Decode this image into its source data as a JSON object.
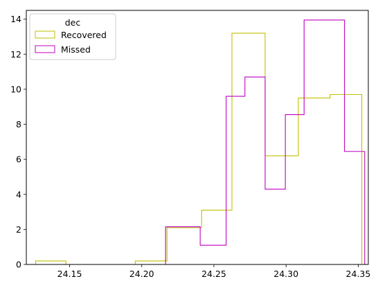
{
  "chart_data": {
    "type": "histogram",
    "title": "",
    "xlabel": "",
    "ylabel": "",
    "xlim": [
      24.12,
      24.357
    ],
    "ylim": [
      0,
      14.5
    ],
    "xticks": [
      "24.15",
      "24.20",
      "24.25",
      "24.30",
      "24.35"
    ],
    "xtick_values": [
      24.15,
      24.2,
      24.25,
      24.3,
      24.35
    ],
    "yticks": [
      "0",
      "2",
      "4",
      "6",
      "8",
      "10",
      "12",
      "14"
    ],
    "ytick_values": [
      0,
      2,
      4,
      6,
      8,
      10,
      12,
      14
    ],
    "grid": false,
    "legend": {
      "title": "dec",
      "position": "top-left",
      "entries": [
        "Recovered",
        "Missed"
      ]
    },
    "series": [
      {
        "name": "Recovered",
        "color": "#bfbf00",
        "bin_edges": [
          24.1265,
          24.1485,
          24.1705,
          24.1925,
          24.2145,
          24.2365,
          24.2585,
          24.2805,
          24.3025,
          24.3245,
          24.3465
        ],
        "bin_edges_note": "",
        "bins": [
          {
            "x0": 24.1265,
            "x1": 24.1475,
            "value": 0.2
          },
          {
            "x0": 24.1475,
            "x1": 24.1955,
            "value": 0.0
          },
          {
            "x0": 24.1955,
            "x1": 24.2175,
            "value": 0.2
          },
          {
            "x0": 24.2175,
            "x1": 24.2415,
            "value": 2.1
          },
          {
            "x0": 24.2415,
            "x1": 24.2625,
            "value": 3.1
          },
          {
            "x0": 24.2625,
            "x1": 24.2855,
            "value": 13.2
          },
          {
            "x0": 24.2855,
            "x1": 24.3085,
            "value": 6.2
          },
          {
            "x0": 24.3085,
            "x1": 24.3305,
            "value": 9.5
          },
          {
            "x0": 24.3305,
            "x1": 24.3525,
            "value": 9.7
          }
        ]
      },
      {
        "name": "Missed",
        "color": "#bf00bf",
        "bins": [
          {
            "x0": 24.2165,
            "x1": 24.2405,
            "value": 2.15
          },
          {
            "x0": 24.2405,
            "x1": 24.2585,
            "value": 1.1
          },
          {
            "x0": 24.2585,
            "x1": 24.2715,
            "value": 9.6
          },
          {
            "x0": 24.2715,
            "x1": 24.2855,
            "value": 10.7
          },
          {
            "x0": 24.2855,
            "x1": 24.2995,
            "value": 4.3
          },
          {
            "x0": 24.2995,
            "x1": 24.3125,
            "value": 8.55
          },
          {
            "x0": 24.3125,
            "x1": 24.3405,
            "value": 13.95
          },
          {
            "x0": 24.3405,
            "x1": 24.3545,
            "value": 6.45
          }
        ]
      }
    ]
  }
}
